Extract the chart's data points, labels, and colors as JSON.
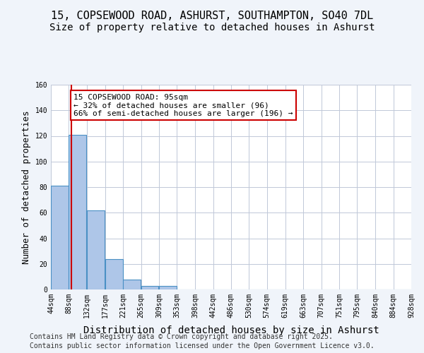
{
  "title_line1": "15, COPSEWOOD ROAD, ASHURST, SOUTHAMPTON, SO40 7DL",
  "title_line2": "Size of property relative to detached houses in Ashurst",
  "xlabel": "Distribution of detached houses by size in Ashurst",
  "ylabel": "Number of detached properties",
  "bins": [
    "44sqm",
    "88sqm",
    "132sqm",
    "177sqm",
    "221sqm",
    "265sqm",
    "309sqm",
    "353sqm",
    "398sqm",
    "442sqm",
    "486sqm",
    "530sqm",
    "574sqm",
    "619sqm",
    "663sqm",
    "707sqm",
    "751sqm",
    "795sqm",
    "840sqm",
    "884sqm",
    "928sqm"
  ],
  "bin_left_edges": [
    44,
    88,
    132,
    177,
    221,
    265,
    309,
    353,
    398,
    442,
    486,
    530,
    574,
    619,
    663,
    707,
    751,
    795,
    840,
    884
  ],
  "bin_width": 44,
  "bar_heights": [
    81,
    121,
    62,
    24,
    8,
    3,
    3,
    0,
    0,
    0,
    0,
    0,
    0,
    0,
    0,
    0,
    0,
    0,
    0,
    0
  ],
  "bar_color": "#aec6e8",
  "bar_edge_color": "#4a90c4",
  "property_size": 95,
  "vline_color": "#cc0000",
  "annotation_text": "15 COPSEWOOD ROAD: 95sqm\n← 32% of detached houses are smaller (96)\n66% of semi-detached houses are larger (196) →",
  "annotation_box_color": "#ffffff",
  "annotation_border_color": "#cc0000",
  "ylim": [
    0,
    160
  ],
  "yticks": [
    0,
    20,
    40,
    60,
    80,
    100,
    120,
    140,
    160
  ],
  "footer_line1": "Contains HM Land Registry data © Crown copyright and database right 2025.",
  "footer_line2": "Contains public sector information licensed under the Open Government Licence v3.0.",
  "background_color": "#f0f4fa",
  "plot_background": "#ffffff",
  "grid_color": "#c0c8d8",
  "title_fontsize": 11,
  "subtitle_fontsize": 10,
  "axis_label_fontsize": 9,
  "tick_fontsize": 7,
  "annotation_fontsize": 8,
  "footer_fontsize": 7
}
